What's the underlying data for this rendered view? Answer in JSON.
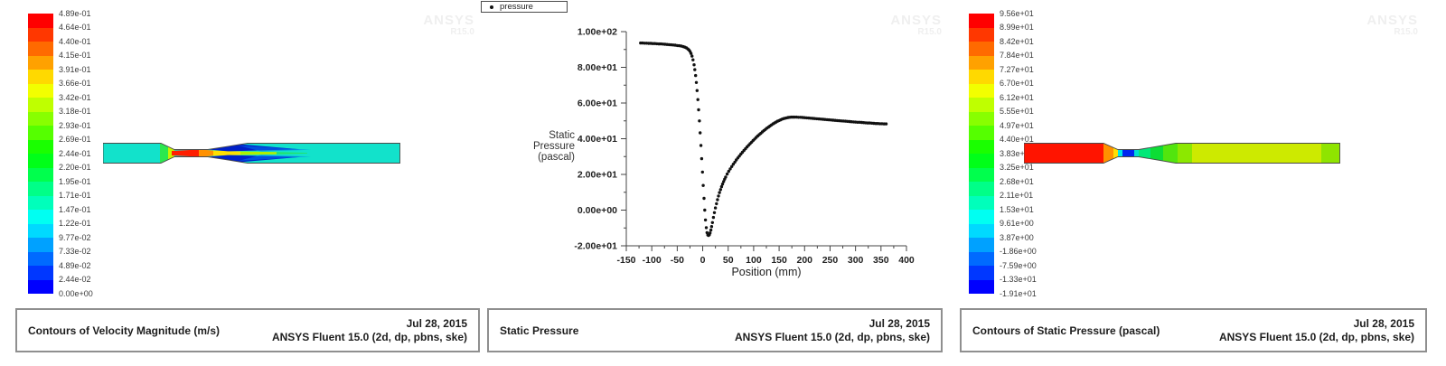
{
  "colormap": [
    "#FF0000",
    "#FF3700",
    "#FF6A00",
    "#FFA100",
    "#FFD900",
    "#F2FF00",
    "#BFFF00",
    "#88FF00",
    "#55FF00",
    "#1AFF00",
    "#00FF19",
    "#00FF4D",
    "#00FF88",
    "#00FFBB",
    "#00FFF2",
    "#00D9FF",
    "#00A1FF",
    "#006AFF",
    "#0037FF",
    "#0000FF"
  ],
  "watermark": {
    "line1": "ANSYS",
    "line2": "R15.0"
  },
  "left_panel": {
    "colorbar_labels": [
      "4.89e-01",
      "4.64e-01",
      "4.40e-01",
      "4.15e-01",
      "3.91e-01",
      "3.66e-01",
      "3.42e-01",
      "3.18e-01",
      "2.93e-01",
      "2.69e-01",
      "2.44e-01",
      "2.20e-01",
      "1.95e-01",
      "1.71e-01",
      "1.47e-01",
      "1.22e-01",
      "9.77e-02",
      "7.33e-02",
      "4.89e-02",
      "2.44e-02",
      "0.00e+00"
    ],
    "caption": {
      "title": "Contours of Velocity Magnitude (m/s)",
      "date": "Jul 28, 2015",
      "solver": "ANSYS Fluent 15.0 (2d, dp, pbns, ske)"
    }
  },
  "middle_panel": {
    "caption": {
      "title": "Static Pressure",
      "date": "Jul 28, 2015",
      "solver": "ANSYS Fluent 15.0 (2d, dp, pbns, ske)"
    }
  },
  "right_panel": {
    "colorbar_labels": [
      "9.56e+01",
      "8.99e+01",
      "8.42e+01",
      "7.84e+01",
      "7.27e+01",
      "6.70e+01",
      "6.12e+01",
      "5.55e+01",
      "4.97e+01",
      "4.40e+01",
      "3.83e+01",
      "3.25e+01",
      "2.68e+01",
      "2.11e+01",
      "1.53e+01",
      "9.61e+00",
      "3.87e+00",
      "-1.86e+00",
      "-7.59e+00",
      "-1.33e+01",
      "-1.91e+01"
    ],
    "caption": {
      "title": "Contours of Static Pressure (pascal)",
      "date": "Jul 28, 2015",
      "solver": "ANSYS Fluent 15.0 (2d, dp, pbns, ske)"
    }
  },
  "chart_data": {
    "type": "scatter",
    "legend_label": "pressure",
    "xlabel": "Position (mm)",
    "ylabel_lines": [
      "Static",
      "Pressure",
      "(pascal)"
    ],
    "xlim": [
      -150,
      400
    ],
    "ylim": [
      -20,
      100
    ],
    "x_ticks": [
      -150,
      -100,
      -50,
      0,
      50,
      100,
      150,
      200,
      250,
      300,
      350,
      400
    ],
    "y_ticks": [
      {
        "v": 100,
        "label": "1.00e+02"
      },
      {
        "v": 80,
        "label": "8.00e+01"
      },
      {
        "v": 60,
        "label": "6.00e+01"
      },
      {
        "v": 40,
        "label": "4.00e+01"
      },
      {
        "v": 20,
        "label": "2.00e+01"
      },
      {
        "v": 0,
        "label": "0.00e+00"
      },
      {
        "v": -20,
        "label": "-2.00e+01"
      }
    ],
    "points": [
      [
        -122,
        93.6
      ],
      [
        -118,
        93.6
      ],
      [
        -114,
        93.5
      ],
      [
        -110,
        93.5
      ],
      [
        -106,
        93.4
      ],
      [
        -102,
        93.4
      ],
      [
        -98,
        93.3
      ],
      [
        -94,
        93.3
      ],
      [
        -90,
        93.2
      ],
      [
        -86,
        93.1
      ],
      [
        -82,
        93.1
      ],
      [
        -78,
        93.0
      ],
      [
        -74,
        92.9
      ],
      [
        -70,
        92.8
      ],
      [
        -66,
        92.7
      ],
      [
        -62,
        92.6
      ],
      [
        -58,
        92.5
      ],
      [
        -54,
        92.4
      ],
      [
        -50,
        92.2
      ],
      [
        -46,
        92.1
      ],
      [
        -42,
        91.9
      ],
      [
        -38,
        91.6
      ],
      [
        -35,
        91.3
      ],
      [
        -32,
        90.9
      ],
      [
        -29,
        90.3
      ],
      [
        -27,
        89.7
      ],
      [
        -25,
        88.9
      ],
      [
        -23,
        87.8
      ],
      [
        -21,
        86.3
      ],
      [
        -19,
        84.2
      ],
      [
        -17,
        81.4
      ],
      [
        -15.5,
        78.7
      ],
      [
        -14,
        75.4
      ],
      [
        -12.5,
        71.5
      ],
      [
        -11,
        67.0
      ],
      [
        -9.5,
        61.9
      ],
      [
        -8,
        56.2
      ],
      [
        -6.5,
        50.0
      ],
      [
        -5,
        43.3
      ],
      [
        -3.5,
        36.2
      ],
      [
        -2,
        28.8
      ],
      [
        -0.5,
        21.3
      ],
      [
        1,
        13.8
      ],
      [
        2.5,
        6.6
      ],
      [
        4,
        0.0
      ],
      [
        5.5,
        -5.5
      ],
      [
        7,
        -9.8
      ],
      [
        8.5,
        -12.6
      ],
      [
        10,
        -13.9
      ],
      [
        11.5,
        -14.2
      ],
      [
        13,
        -13.8
      ],
      [
        14.5,
        -12.8
      ],
      [
        16,
        -11.2
      ],
      [
        17.5,
        -9.2
      ],
      [
        19,
        -7.0
      ],
      [
        21,
        -4.1
      ],
      [
        23,
        -1.4
      ],
      [
        25,
        1.2
      ],
      [
        27,
        3.6
      ],
      [
        29,
        5.8
      ],
      [
        31,
        7.9
      ],
      [
        33,
        9.8
      ],
      [
        35,
        11.5
      ],
      [
        37,
        13.1
      ],
      [
        39,
        14.6
      ],
      [
        41,
        16.0
      ],
      [
        43,
        17.3
      ],
      [
        45,
        18.5
      ],
      [
        48,
        20.2
      ],
      [
        51,
        21.7
      ],
      [
        54,
        23.1
      ],
      [
        57,
        24.4
      ],
      [
        60,
        25.7
      ],
      [
        63,
        26.9
      ],
      [
        66,
        28.1
      ],
      [
        69,
        29.2
      ],
      [
        72,
        30.3
      ],
      [
        75,
        31.4
      ],
      [
        78,
        32.4
      ],
      [
        81,
        33.4
      ],
      [
        84,
        34.4
      ],
      [
        87,
        35.4
      ],
      [
        90,
        36.3
      ],
      [
        93,
        37.2
      ],
      [
        96,
        38.1
      ],
      [
        99,
        39.0
      ],
      [
        102,
        39.8
      ],
      [
        105,
        40.7
      ],
      [
        108,
        41.5
      ],
      [
        111,
        42.3
      ],
      [
        114,
        43.0
      ],
      [
        117,
        43.8
      ],
      [
        120,
        44.5
      ],
      [
        123,
        45.2
      ],
      [
        126,
        45.9
      ],
      [
        129,
        46.5
      ],
      [
        132,
        47.1
      ],
      [
        135,
        47.7
      ],
      [
        138,
        48.3
      ],
      [
        141,
        48.8
      ],
      [
        144,
        49.3
      ],
      [
        147,
        49.8
      ],
      [
        150,
        50.2
      ],
      [
        153,
        50.6
      ],
      [
        156,
        51.0
      ],
      [
        159,
        51.3
      ],
      [
        162,
        51.5
      ],
      [
        165,
        51.7
      ],
      [
        168,
        51.9
      ],
      [
        171,
        52.0
      ],
      [
        174,
        52.1
      ],
      [
        177,
        52.1
      ],
      [
        180,
        52.1
      ],
      [
        184,
        52.1
      ],
      [
        188,
        52.0
      ],
      [
        192,
        52.0
      ],
      [
        196,
        51.9
      ],
      [
        200,
        51.8
      ],
      [
        204,
        51.7
      ],
      [
        208,
        51.6
      ],
      [
        212,
        51.5
      ],
      [
        216,
        51.4
      ],
      [
        220,
        51.3
      ],
      [
        224,
        51.2
      ],
      [
        228,
        51.1
      ],
      [
        232,
        51.0
      ],
      [
        236,
        50.9
      ],
      [
        240,
        50.8
      ],
      [
        244,
        50.7
      ],
      [
        248,
        50.6
      ],
      [
        252,
        50.5
      ],
      [
        256,
        50.4
      ],
      [
        260,
        50.3
      ],
      [
        264,
        50.2
      ],
      [
        268,
        50.1
      ],
      [
        272,
        50.0
      ],
      [
        276,
        49.9
      ],
      [
        280,
        49.8
      ],
      [
        284,
        49.7
      ],
      [
        288,
        49.6
      ],
      [
        292,
        49.5
      ],
      [
        296,
        49.4
      ],
      [
        300,
        49.3
      ],
      [
        304,
        49.2
      ],
      [
        308,
        49.2
      ],
      [
        312,
        49.1
      ],
      [
        316,
        49.0
      ],
      [
        320,
        48.9
      ],
      [
        324,
        48.8
      ],
      [
        328,
        48.8
      ],
      [
        332,
        48.7
      ],
      [
        336,
        48.6
      ],
      [
        340,
        48.5
      ],
      [
        344,
        48.5
      ],
      [
        348,
        48.4
      ],
      [
        352,
        48.4
      ],
      [
        356,
        48.3
      ],
      [
        360,
        48.3
      ]
    ]
  }
}
